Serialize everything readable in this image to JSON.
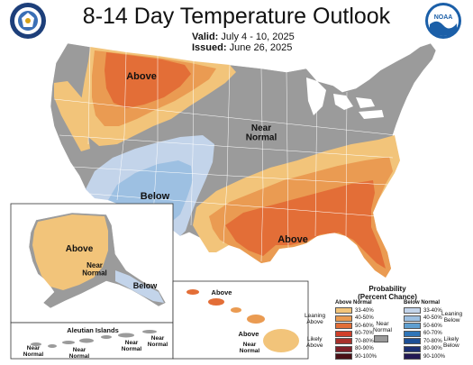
{
  "header": {
    "title": "8-14 Day Temperature Outlook",
    "valid_label": "Valid:",
    "valid_value": "July 4 - 10, 2025",
    "issued_label": "Issued:",
    "issued_value": "June 26, 2025"
  },
  "logos": {
    "left": "department-of-commerce-seal",
    "right": "noaa-logo",
    "right_text": "NOAA"
  },
  "map_labels": {
    "conus_above_north": "Above",
    "conus_near_normal": "Near\nNormal",
    "conus_below": "Below",
    "conus_above_south": "Above",
    "alaska_above": "Above",
    "alaska_near_normal": "Near\nNormal",
    "alaska_below": "Below",
    "aleutian_title": "Aleutian Islands",
    "aleutian_near_1": "Near\nNormal",
    "aleutian_near_2": "Near\nNormal",
    "aleutian_near_3": "Near\nNormal",
    "aleutian_near_4": "Near\nNormal",
    "hawaii_above_1": "Above",
    "hawaii_above_2": "Above",
    "hawaii_near_normal": "Near\nNormal"
  },
  "legend": {
    "title": "Probability\n(Percent Chance)",
    "above_header": "Above Normal",
    "below_header": "Below Normal",
    "near_normal_label": "Near\nNormal",
    "leaning_above": "Leaning\nAbove",
    "likely_above": "Likely\nAbove",
    "leaning_below": "Leaning\nBelow",
    "likely_below": "Likely\nBelow",
    "above_classes": [
      {
        "label": "33-40%",
        "color": "#f2c47a"
      },
      {
        "label": "40-50%",
        "color": "#ea9b52"
      },
      {
        "label": "50-60%",
        "color": "#e36e37"
      },
      {
        "label": "60-70%",
        "color": "#d0402a"
      },
      {
        "label": "70-80%",
        "color": "#a8302b"
      },
      {
        "label": "80-90%",
        "color": "#7f1f28"
      },
      {
        "label": "90-100%",
        "color": "#4a1016"
      }
    ],
    "below_classes": [
      {
        "label": "33-40%",
        "color": "#c3d4ea"
      },
      {
        "label": "40-50%",
        "color": "#9dc0e2"
      },
      {
        "label": "50-60%",
        "color": "#5f9fd0"
      },
      {
        "label": "60-70%",
        "color": "#2f75b8"
      },
      {
        "label": "70-80%",
        "color": "#1d4f96"
      },
      {
        "label": "80-90%",
        "color": "#1c2f73"
      },
      {
        "label": "90-100%",
        "color": "#221854"
      }
    ],
    "near_normal_color": "#9a9a9a"
  },
  "colors": {
    "normal_gray": "#9b9b9b",
    "above_33": "#f2c47a",
    "above_40": "#ea9b52",
    "above_50": "#e36e37",
    "below_33": "#c3d4ea",
    "below_40": "#9dc0e2",
    "state_line": "#ffffff",
    "water": "#ffffff"
  }
}
